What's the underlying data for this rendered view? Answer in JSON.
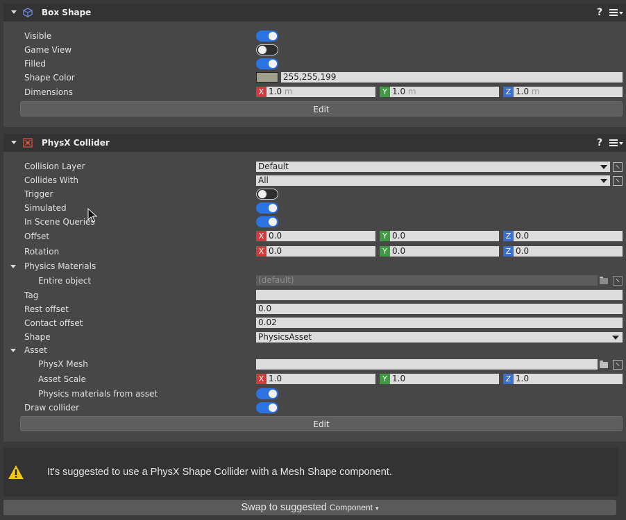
{
  "box_shape": {
    "title": "Box Shape",
    "help": "?",
    "rows": {
      "visible": "Visible",
      "game_view": "Game View",
      "filled": "Filled",
      "shape_color": "Shape Color",
      "dimensions": "Dimensions"
    },
    "toggles": {
      "visible": true,
      "game_view": false,
      "filled": true
    },
    "shape_color_value": "255,255,199",
    "swatch_color": "#a09f8c",
    "dimensions": {
      "x": "1.0",
      "y": "1.0",
      "z": "1.0",
      "unit": "m"
    },
    "edit_label": "Edit"
  },
  "physx_collider": {
    "title": "PhysX Collider",
    "help": "?",
    "rows": {
      "collision_layer": "Collision Layer",
      "collides_with": "Collides With",
      "trigger": "Trigger",
      "simulated": "Simulated",
      "in_scene_queries": "In Scene Queries",
      "offset": "Offset",
      "rotation": "Rotation",
      "physics_materials": "Physics Materials",
      "entire_object": "Entire object",
      "tag": "Tag",
      "rest_offset": "Rest offset",
      "contact_offset": "Contact offset",
      "shape": "Shape",
      "asset": "Asset",
      "physx_mesh": "PhysX Mesh",
      "asset_scale": "Asset Scale",
      "physics_materials_from_asset": "Physics materials from asset",
      "draw_collider": "Draw collider"
    },
    "values": {
      "collision_layer": "Default",
      "collides_with": "All",
      "entire_object": "(default)",
      "tag": "",
      "rest_offset": "0.0",
      "contact_offset": "0.02",
      "shape": "PhysicsAsset",
      "physx_mesh": ""
    },
    "toggles": {
      "trigger": false,
      "simulated": true,
      "in_scene_queries": true,
      "physics_materials_from_asset": true,
      "draw_collider": true
    },
    "offset": {
      "x": "0.0",
      "y": "0.0",
      "z": "0.0"
    },
    "rotation": {
      "x": "0.0",
      "y": "0.0",
      "z": "0.0"
    },
    "asset_scale": {
      "x": "1.0",
      "y": "1.0",
      "z": "1.0"
    },
    "axis_labels": {
      "x": "X",
      "y": "Y",
      "z": "Z"
    },
    "edit_label": "Edit"
  },
  "warning": {
    "message": "It's suggested to use a PhysX Shape Collider with a Mesh Shape component.",
    "swap_label": "Swap to suggested",
    "swap_component": "Component"
  }
}
